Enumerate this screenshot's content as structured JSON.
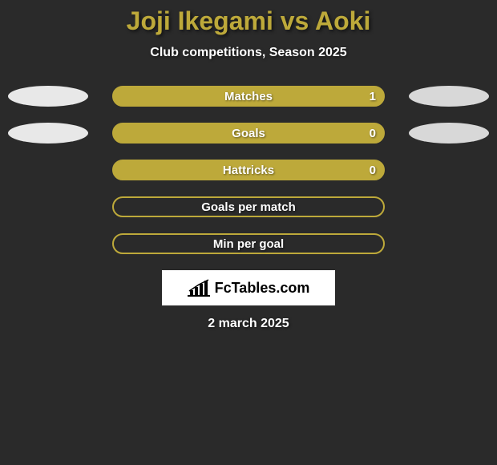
{
  "title": "Joji Ikegami vs Aoki",
  "subtitle": "Club competitions, Season 2025",
  "date": "2 march 2025",
  "logo_text": "FcTables.com",
  "colors": {
    "background": "#2a2a2a",
    "accent": "#bda93a",
    "text": "#ffffff",
    "ellipse_left_1": "#e8e8e8",
    "ellipse_right_1": "#d8d8d8",
    "ellipse_left_2": "#e8e8e8",
    "ellipse_right_2": "#d8d8d8"
  },
  "rows": [
    {
      "label": "Matches",
      "value": "1",
      "filled": true,
      "left_ellipse": true,
      "right_ellipse": true
    },
    {
      "label": "Goals",
      "value": "0",
      "filled": true,
      "left_ellipse": true,
      "right_ellipse": true
    },
    {
      "label": "Hattricks",
      "value": "0",
      "filled": true,
      "left_ellipse": false,
      "right_ellipse": false
    },
    {
      "label": "Goals per match",
      "value": "",
      "filled": false,
      "left_ellipse": false,
      "right_ellipse": false
    },
    {
      "label": "Min per goal",
      "value": "",
      "filled": false,
      "left_ellipse": false,
      "right_ellipse": false
    }
  ]
}
